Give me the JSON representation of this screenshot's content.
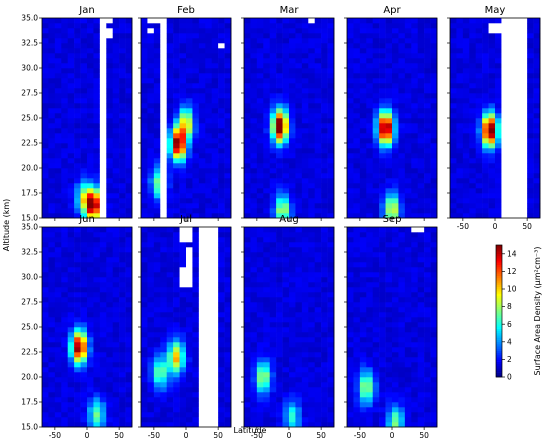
{
  "chart_data": {
    "type": "heatmap",
    "panels": [
      {
        "title": "Jan",
        "blank_lat_bands": [
          [
            20,
            28
          ]
        ],
        "blank_cells": [
          [
            30,
            33.5
          ],
          [
            33,
            35
          ]
        ],
        "hotspots": [
          {
            "lat": 10,
            "alt": 16.3,
            "value": 14
          },
          {
            "lat": -5,
            "alt": 17,
            "value": 6
          }
        ]
      },
      {
        "title": "Feb",
        "blank_lat_bands": [
          [
            -42,
            -32
          ]
        ],
        "blank_cells": [
          [
            -52,
            33.8
          ],
          [
            -50,
            34.8
          ],
          [
            56,
            32.3
          ]
        ],
        "hotspots": [
          {
            "lat": -12,
            "alt": 22.4,
            "value": 14
          },
          {
            "lat": 0,
            "alt": 24.5,
            "value": 8
          },
          {
            "lat": -42,
            "alt": 18.5,
            "value": 6
          }
        ]
      },
      {
        "title": "Mar",
        "blank_lat_bands": [],
        "blank_cells": [
          [
            33,
            34.8
          ]
        ],
        "hotspots": [
          {
            "lat": -14,
            "alt": 24.2,
            "value": 15
          },
          {
            "lat": -10,
            "alt": 15.8,
            "value": 7
          }
        ]
      },
      {
        "title": "Apr",
        "blank_lat_bands": [],
        "blank_cells": [],
        "hotspots": [
          {
            "lat": -10,
            "alt": 24.0,
            "value": 15
          },
          {
            "lat": 0,
            "alt": 15.8,
            "value": 8
          }
        ]
      },
      {
        "title": "May",
        "blank_lat_bands": [
          [
            8,
            45
          ]
        ],
        "blank_cells": [
          [
            0,
            34
          ]
        ],
        "hotspots": [
          {
            "lat": -8,
            "alt": 23.8,
            "value": 15
          }
        ]
      }
    ],
    "panels_row2": [
      {
        "title": "Jun",
        "blank_lat_bands": [],
        "blank_cells": [],
        "hotspots": [
          {
            "lat": -12,
            "alt": 23.0,
            "value": 14
          },
          {
            "lat": 15,
            "alt": 16.2,
            "value": 6
          }
        ]
      },
      {
        "title": "Jul",
        "blank_lat_bands": [
          [
            18,
            46
          ]
        ],
        "blank_cells": [
          [
            0,
            34.5
          ],
          [
            0,
            33.8
          ],
          [
            2,
            32.5
          ],
          [
            2,
            31.5
          ],
          [
            0,
            30.5
          ],
          [
            0,
            29.5
          ]
        ],
        "hotspots": [
          {
            "lat": -15,
            "alt": 22.0,
            "value": 9
          },
          {
            "lat": -40,
            "alt": 20.5,
            "value": 6
          }
        ]
      },
      {
        "title": "Aug",
        "blank_lat_bands": [],
        "blank_cells": [],
        "hotspots": [
          {
            "lat": -40,
            "alt": 20.0,
            "value": 7
          },
          {
            "lat": 5,
            "alt": 16.0,
            "value": 5
          }
        ]
      },
      {
        "title": "Sep",
        "blank_lat_bands": [],
        "blank_cells": [
          [
            40,
            34.8
          ]
        ],
        "hotspots": [
          {
            "lat": -40,
            "alt": 19.0,
            "value": 7
          },
          {
            "lat": 5,
            "alt": 15.5,
            "value": 6
          }
        ]
      }
    ],
    "xlabel": "Latitude",
    "ylabel": "Altitude (km)",
    "xlim": [
      -70,
      70
    ],
    "ylim": [
      15.0,
      35.0
    ],
    "xticks": [
      "-50",
      "0",
      "50"
    ],
    "yticks": [
      "15.0",
      "17.5",
      "20.0",
      "22.5",
      "25.0",
      "27.5",
      "30.0",
      "32.5",
      "35.0"
    ],
    "colorbar": {
      "label": "Surface Area Density (μm²cm⁻³)",
      "range": [
        0,
        15
      ],
      "ticks": [
        "0",
        "2",
        "4",
        "6",
        "8",
        "10",
        "12",
        "14"
      ],
      "colormap": "jet"
    },
    "grid": false
  }
}
